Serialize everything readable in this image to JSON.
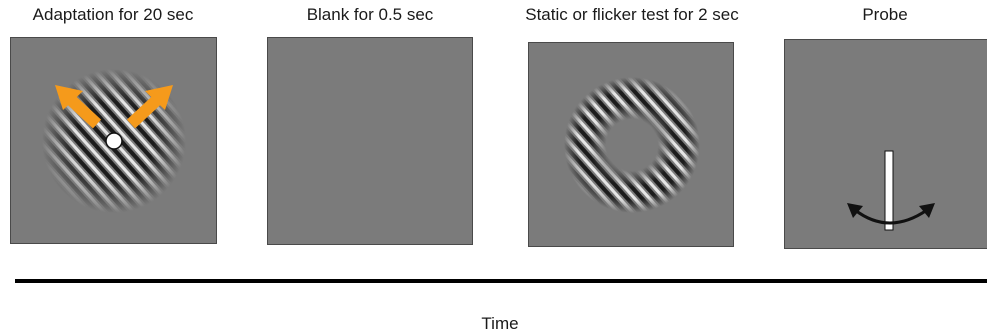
{
  "stages": [
    {
      "title": "Adaptation for 20 sec"
    },
    {
      "title": "Blank for 0.5 sec"
    },
    {
      "title": "Static or flicker test for 2 sec"
    },
    {
      "title": "Probe"
    }
  ],
  "axis": {
    "label": "Time"
  },
  "colors": {
    "background": "#7b7b7b",
    "arrow": "#f59a1b",
    "timeline": "#000000"
  }
}
